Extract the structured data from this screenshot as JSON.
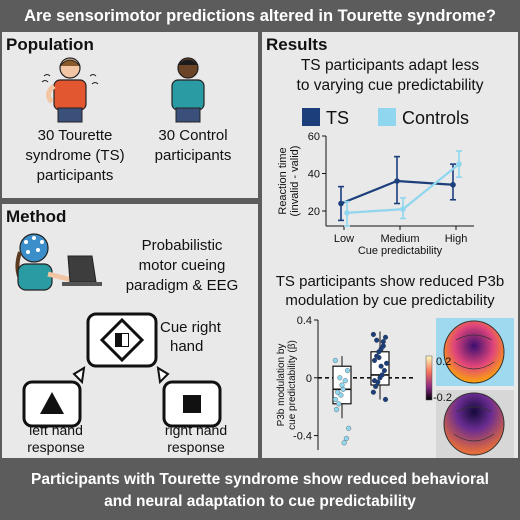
{
  "title": "Are sensorimotor predictions altered in Tourette syndrome?",
  "population": {
    "heading": "Population",
    "group_ts": [
      "30 Tourette",
      "syndrome (TS)",
      "participants"
    ],
    "group_controls": [
      "30 Control",
      "participants"
    ]
  },
  "method": {
    "heading": "Method",
    "description": [
      "Probabilistic",
      "motor cueing",
      "paradigm & EEG"
    ],
    "cue_label": [
      "Cue right",
      "hand"
    ],
    "left_label": [
      "left hand",
      "response"
    ],
    "right_label": [
      "right hand",
      "response"
    ]
  },
  "results": {
    "heading": "Results",
    "subtitle1": [
      "TS participants adapt less",
      "to varying cue predictability"
    ],
    "subtitle2": [
      "TS participants show reduced P3b",
      "modulation by cue predictability"
    ]
  },
  "colors": {
    "ts": "#1c3f7c",
    "controls": "#8fd6ee",
    "panel": "#e9e9e9",
    "background": "#5c5c5c"
  },
  "chart_data": [
    {
      "type": "line",
      "categories": [
        "Low",
        "Medium",
        "High"
      ],
      "series": [
        {
          "name": "TS",
          "values": [
            24,
            36,
            34
          ],
          "errors_low": [
            15,
            24,
            26
          ],
          "errors_high": [
            33,
            49,
            45
          ]
        },
        {
          "name": "Controls",
          "values": [
            19,
            21,
            45
          ],
          "errors_low": [
            12,
            16,
            38
          ],
          "errors_high": [
            25,
            27,
            52
          ]
        }
      ],
      "xlabel": "Cue predictability",
      "ylabel": [
        "Reaction time",
        "(invalid - valid)"
      ],
      "yticks": [
        20,
        40,
        60
      ],
      "ylim": [
        12,
        60
      ],
      "legend": "top"
    },
    {
      "type": "box",
      "series": [
        {
          "name": "Controls",
          "median": -0.08,
          "q1": -0.18,
          "q3": 0.08,
          "whisker_low": -0.28,
          "whisker_high": 0.15,
          "points": [
            0.12,
            0.05,
            -0.02,
            -0.08,
            -0.12,
            -0.18,
            -0.22,
            -0.35,
            -0.42,
            -0.45,
            -0.05,
            0.0,
            -0.1,
            -0.15
          ]
        },
        {
          "name": "TS",
          "median": 0.02,
          "q1": -0.05,
          "q3": 0.18,
          "whisker_low": -0.15,
          "whisker_high": 0.32,
          "points": [
            0.3,
            0.28,
            0.25,
            0.2,
            0.18,
            0.15,
            0.12,
            0.1,
            0.05,
            0.02,
            0.0,
            -0.03,
            -0.06,
            -0.1,
            -0.15,
            0.22,
            0.08,
            0.14,
            0.26,
            -0.02
          ]
        }
      ],
      "ylabel": [
        "P3b modulation by",
        "cue predictability (β)"
      ],
      "yticks": [
        0.4,
        0,
        -0.4
      ],
      "ylim": [
        -0.5,
        0.4
      ]
    }
  ],
  "colorbar": {
    "max": "0.2",
    "min": "-0.2"
  },
  "footer": [
    "Participants with Tourette syndrome show reduced behavioral",
    "and neural adaptation to cue predictability"
  ]
}
